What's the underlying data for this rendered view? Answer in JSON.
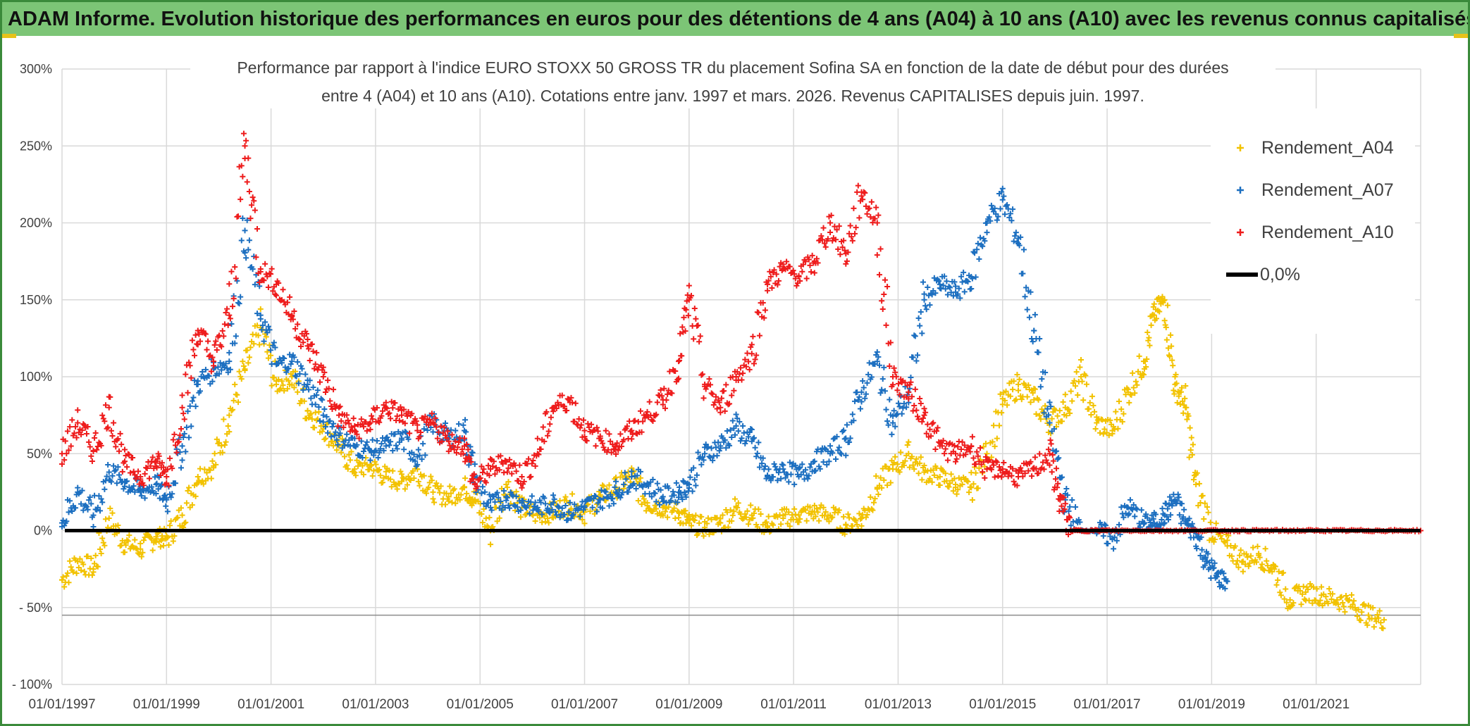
{
  "banner": {
    "title": "ADAM Informe. Evolution historique des performances en euros pour des détentions de 4 ans (A04) à 10 ans (A10) avec les revenus connus capitalisés"
  },
  "chart_data": {
    "type": "scatter",
    "title_line1": "Performance par rapport à l'indice EURO STOXX 50 GROSS TR  du placement Sofina SA en fonction de la date de début pour des durées",
    "title_line2": "entre 4 (A04) et 10 ans (A10). Cotations entre janv. 1997 et mars. 2026. Revenus CAPITALISES depuis juin. 1997.",
    "xlabel": "",
    "ylabel": "",
    "xlim": [
      1997.0,
      2023.0
    ],
    "ylim": [
      -100,
      300
    ],
    "x_ticks": [
      1997,
      1999,
      2001,
      2003,
      2005,
      2007,
      2009,
      2011,
      2013,
      2015,
      2017,
      2019,
      2021
    ],
    "x_tick_labels": [
      "01/01/1997",
      "01/01/1999",
      "01/01/2001",
      "01/01/2003",
      "01/01/2005",
      "01/01/2007",
      "01/01/2009",
      "01/01/2011",
      "01/01/2013",
      "01/01/2015",
      "01/01/2017",
      "01/01/2019",
      "01/01/2021"
    ],
    "y_ticks": [
      300,
      250,
      200,
      150,
      100,
      50,
      0,
      -50,
      -100
    ],
    "y_tick_labels": [
      "300%",
      "250%",
      "200%",
      "150%",
      "100%",
      "50%",
      "0%",
      "- 50%",
      "- 100%"
    ],
    "grid": true,
    "legend_position": "top-right",
    "reference_line": {
      "name": "0,0%",
      "y": 0,
      "color": "#000000"
    },
    "series": [
      {
        "name": "Rendement_A04",
        "color": "#f2c200",
        "marker": "+",
        "x": [
          1997.0,
          1997.3,
          1997.6,
          1997.9,
          1998.2,
          1998.5,
          1998.8,
          1999.0,
          1999.3,
          1999.6,
          1999.9,
          2000.2,
          2000.5,
          2000.8,
          2001.1,
          2001.4,
          2001.7,
          2002.0,
          2002.3,
          2002.6,
          2002.9,
          2003.2,
          2003.5,
          2003.8,
          2004.1,
          2004.4,
          2004.7,
          2004.9,
          2005.2,
          2005.5,
          2005.8,
          2006.1,
          2006.4,
          2006.7,
          2007.0,
          2007.3,
          2007.6,
          2007.9,
          2008.2,
          2008.5,
          2008.8,
          2009.0,
          2009.3,
          2009.6,
          2009.9,
          2010.2,
          2010.5,
          2010.8,
          2011.1,
          2011.4,
          2011.7,
          2012.0,
          2012.3,
          2012.6,
          2012.9,
          2013.2,
          2013.5,
          2013.8,
          2014.1,
          2014.4,
          2014.7,
          2015.0,
          2015.3,
          2015.6,
          2015.9,
          2016.2,
          2016.5,
          2016.8,
          2017.1,
          2017.4,
          2017.7,
          2017.9,
          2018.1,
          2018.3,
          2018.5,
          2018.7,
          2019.0,
          2019.3,
          2019.6,
          2019.9,
          2020.2,
          2020.5,
          2020.8,
          2021.1,
          2021.4,
          2021.7,
          2022.0,
          2022.3
        ],
        "y": [
          -32,
          -20,
          -25,
          8,
          -8,
          -12,
          -4,
          -5,
          10,
          35,
          42,
          75,
          105,
          132,
          95,
          100,
          78,
          68,
          55,
          40,
          42,
          35,
          32,
          40,
          25,
          22,
          28,
          20,
          0,
          30,
          15,
          10,
          12,
          18,
          12,
          22,
          28,
          35,
          18,
          15,
          12,
          5,
          2,
          5,
          15,
          10,
          3,
          8,
          10,
          12,
          10,
          4,
          8,
          28,
          40,
          50,
          38,
          35,
          30,
          28,
          50,
          82,
          95,
          85,
          70,
          80,
          100,
          70,
          65,
          90,
          110,
          140,
          150,
          95,
          80,
          30,
          0,
          -10,
          -20,
          -15,
          -25,
          -45,
          -40,
          -42,
          -45,
          -48,
          -55,
          -58
        ]
      },
      {
        "name": "Rendement_A07",
        "color": "#1c6fc0",
        "marker": "+",
        "x": [
          1997.0,
          1997.3,
          1997.6,
          1997.9,
          1998.2,
          1998.5,
          1998.8,
          1999.0,
          1999.3,
          1999.6,
          1999.9,
          2000.2,
          2000.5,
          2000.8,
          2001.1,
          2001.4,
          2001.7,
          2002.0,
          2002.3,
          2002.6,
          2002.9,
          2003.2,
          2003.5,
          2003.8,
          2004.1,
          2004.4,
          2004.7,
          2004.9,
          2005.2,
          2005.5,
          2005.8,
          2006.1,
          2006.4,
          2006.7,
          2007.0,
          2007.3,
          2007.6,
          2007.9,
          2008.2,
          2008.5,
          2008.8,
          2009.0,
          2009.3,
          2009.6,
          2009.9,
          2010.2,
          2010.5,
          2010.8,
          2011.1,
          2011.4,
          2011.7,
          2012.0,
          2012.3,
          2012.6,
          2012.9,
          2013.2,
          2013.5,
          2013.8,
          2014.1,
          2014.4,
          2014.7,
          2015.0,
          2015.3,
          2015.6,
          2015.9,
          2016.2,
          2016.5,
          2016.8,
          2017.1,
          2017.4,
          2017.7,
          2017.9,
          2018.1,
          2018.3,
          2018.5,
          2018.7,
          2018.9,
          2019.1,
          2019.3
        ],
        "y": [
          5,
          25,
          10,
          38,
          32,
          25,
          30,
          20,
          55,
          95,
          105,
          110,
          195,
          140,
          108,
          110,
          95,
          75,
          62,
          55,
          52,
          55,
          60,
          48,
          70,
          60,
          65,
          35,
          15,
          22,
          18,
          15,
          18,
          12,
          15,
          20,
          25,
          35,
          30,
          22,
          25,
          30,
          50,
          55,
          68,
          58,
          35,
          40,
          35,
          45,
          50,
          60,
          90,
          110,
          70,
          90,
          150,
          160,
          155,
          165,
          200,
          215,
          190,
          130,
          70,
          20,
          0,
          0,
          -5,
          15,
          5,
          5,
          10,
          20,
          5,
          -2,
          -20,
          -30,
          -33
        ]
      },
      {
        "name": "Rendement_A10",
        "color": "#ee1c1c",
        "marker": "+",
        "x": [
          1997.0,
          1997.3,
          1997.6,
          1997.9,
          1998.2,
          1998.5,
          1998.8,
          1999.0,
          1999.3,
          1999.6,
          1999.9,
          2000.2,
          2000.5,
          2000.8,
          2001.1,
          2001.4,
          2001.7,
          2002.0,
          2002.3,
          2002.6,
          2002.9,
          2003.2,
          2003.5,
          2003.8,
          2004.1,
          2004.4,
          2004.7,
          2004.9,
          2005.2,
          2005.5,
          2005.8,
          2006.1,
          2006.4,
          2006.7,
          2007.0,
          2007.3,
          2007.6,
          2007.9,
          2008.2,
          2008.5,
          2008.8,
          2009.0,
          2009.3,
          2009.6,
          2009.9,
          2010.2,
          2010.5,
          2010.8,
          2011.1,
          2011.4,
          2011.7,
          2012.0,
          2012.3,
          2012.6,
          2012.9,
          2013.2,
          2013.5,
          2013.8,
          2014.1,
          2014.4,
          2014.7,
          2015.0,
          2015.3,
          2015.6,
          2015.9,
          2016.1,
          2016.3,
          2016.6,
          2017.0,
          2017.5,
          2018.0,
          2018.5,
          2019.0,
          2019.5,
          2020.0,
          2020.5,
          2021.0,
          2021.5,
          2022.0,
          2022.5,
          2023.0
        ],
        "y": [
          50,
          70,
          52,
          80,
          45,
          35,
          45,
          35,
          80,
          130,
          110,
          140,
          250,
          170,
          160,
          140,
          120,
          100,
          75,
          65,
          70,
          80,
          75,
          65,
          70,
          58,
          55,
          30,
          40,
          45,
          35,
          50,
          80,
          85,
          65,
          60,
          55,
          65,
          75,
          85,
          110,
          150,
          95,
          80,
          100,
          115,
          160,
          170,
          165,
          175,
          200,
          180,
          220,
          200,
          100,
          90,
          75,
          55,
          50,
          55,
          40,
          40,
          35,
          40,
          50,
          20,
          0,
          0,
          0,
          0,
          0,
          0,
          0,
          0,
          0,
          0,
          0,
          0,
          0,
          0,
          0
        ]
      }
    ]
  }
}
